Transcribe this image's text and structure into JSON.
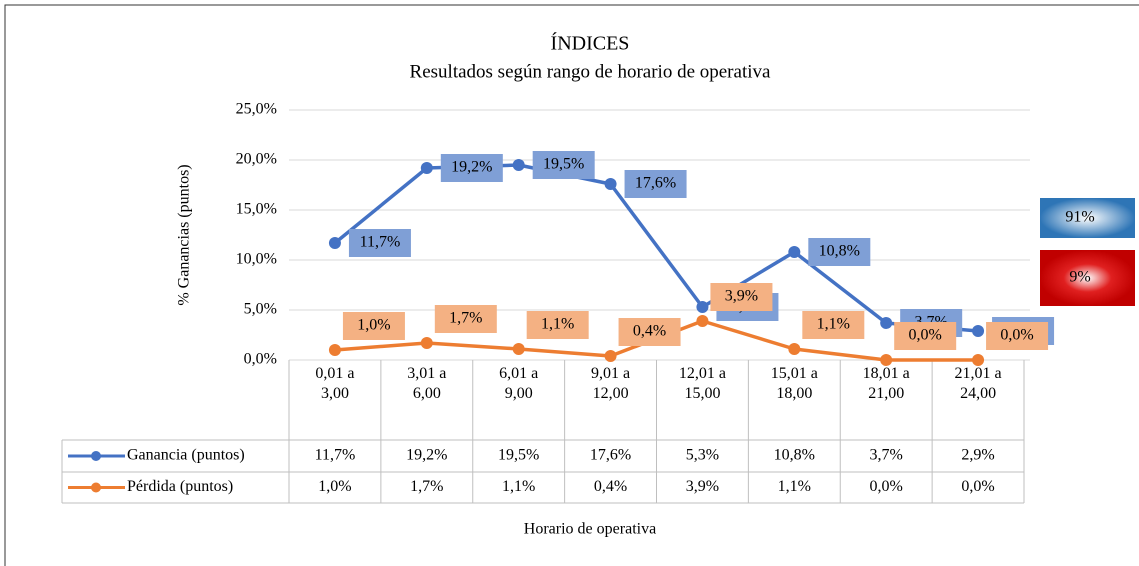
{
  "chart_data": {
    "type": "line",
    "title": "ÍNDICES",
    "subtitle": "Resultados según rango de horario de operativa",
    "x_label": "Horario de operativa",
    "y_label": "% Ganancias (puntos)",
    "categories": [
      "0,01 a 3,00",
      "3,01 a 6,00",
      "6,01 a 9,00",
      "9,01 a 12,00",
      "12,01 a 15,00",
      "15,01 a 18,00",
      "18,01 a 21,00",
      "21,01 a 24,00"
    ],
    "series": [
      {
        "name": "Ganancia (puntos)",
        "color": "#4472c4",
        "values": [
          11.7,
          19.2,
          19.5,
          17.6,
          5.3,
          10.8,
          3.7,
          2.9
        ],
        "value_labels": [
          "11,7%",
          "19,2%",
          "19,5%",
          "17,6%",
          "5,3%",
          "10,8%",
          "3,7%",
          "2,9%"
        ]
      },
      {
        "name": "Pérdida (puntos)",
        "color": "#ed7d31",
        "values": [
          1.0,
          1.7,
          1.1,
          0.4,
          3.9,
          1.1,
          0.0,
          0.0
        ],
        "value_labels": [
          "1,0%",
          "1,7%",
          "1,1%",
          "0,4%",
          "3,9%",
          "1,1%",
          "0,0%",
          "0,0%"
        ]
      }
    ],
    "ylim": [
      0,
      25
    ],
    "yticks": [
      {
        "value": 0,
        "label": "0,0%"
      },
      {
        "value": 5,
        "label": "5,0%"
      },
      {
        "value": 10,
        "label": "10,0%"
      },
      {
        "value": 15,
        "label": "15,0%"
      },
      {
        "value": 20,
        "label": "20,0%"
      },
      {
        "value": 25,
        "label": "25,0%"
      }
    ],
    "grid": true,
    "annotations": [
      {
        "text": "91%",
        "color": "#2e75b6"
      },
      {
        "text": "9%",
        "color": "#c00000"
      }
    ]
  }
}
